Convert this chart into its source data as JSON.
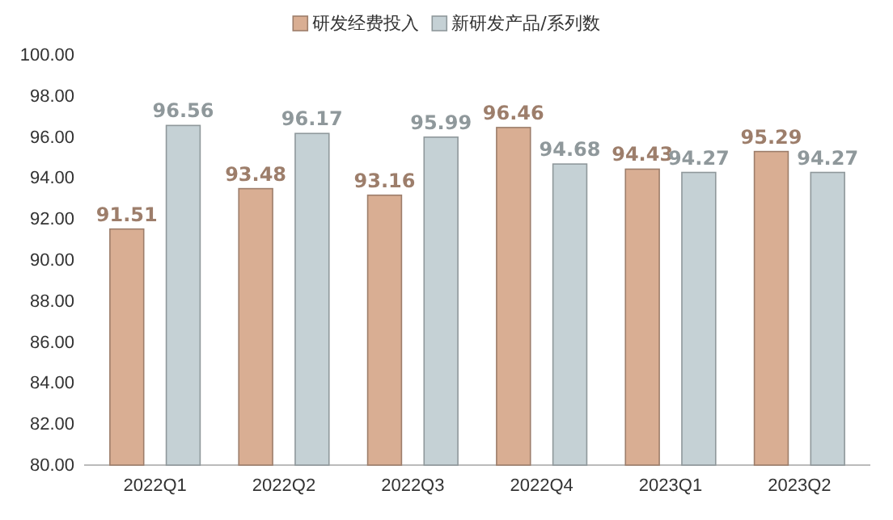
{
  "chart_data": {
    "type": "bar",
    "categories": [
      "2022Q1",
      "2022Q2",
      "2022Q3",
      "2022Q4",
      "2023Q1",
      "2023Q2"
    ],
    "series": [
      {
        "name": "研发经费投入",
        "color": "#d9ae93",
        "values": [
          91.51,
          93.48,
          93.16,
          96.46,
          94.43,
          95.29
        ]
      },
      {
        "name": "新研发产品/系列数",
        "color": "#c5d1d5",
        "values": [
          96.56,
          96.17,
          95.99,
          94.68,
          94.27,
          94.27
        ]
      }
    ],
    "ylim": [
      80,
      100
    ],
    "yticks": [
      {
        "value": 80,
        "label": "80.00"
      },
      {
        "value": 82,
        "label": "82.00"
      },
      {
        "value": 84,
        "label": "84.00"
      },
      {
        "value": 86,
        "label": "86.00"
      },
      {
        "value": 88,
        "label": "88.00"
      },
      {
        "value": 90,
        "label": "90.00"
      },
      {
        "value": 92,
        "label": "92.00"
      },
      {
        "value": 94,
        "label": "94.00"
      },
      {
        "value": 96,
        "label": "96.00"
      },
      {
        "value": 98,
        "label": "98.00"
      },
      {
        "value": 100,
        "label": "100.00"
      }
    ],
    "grid": false,
    "legend": "top",
    "data_labels": true
  }
}
